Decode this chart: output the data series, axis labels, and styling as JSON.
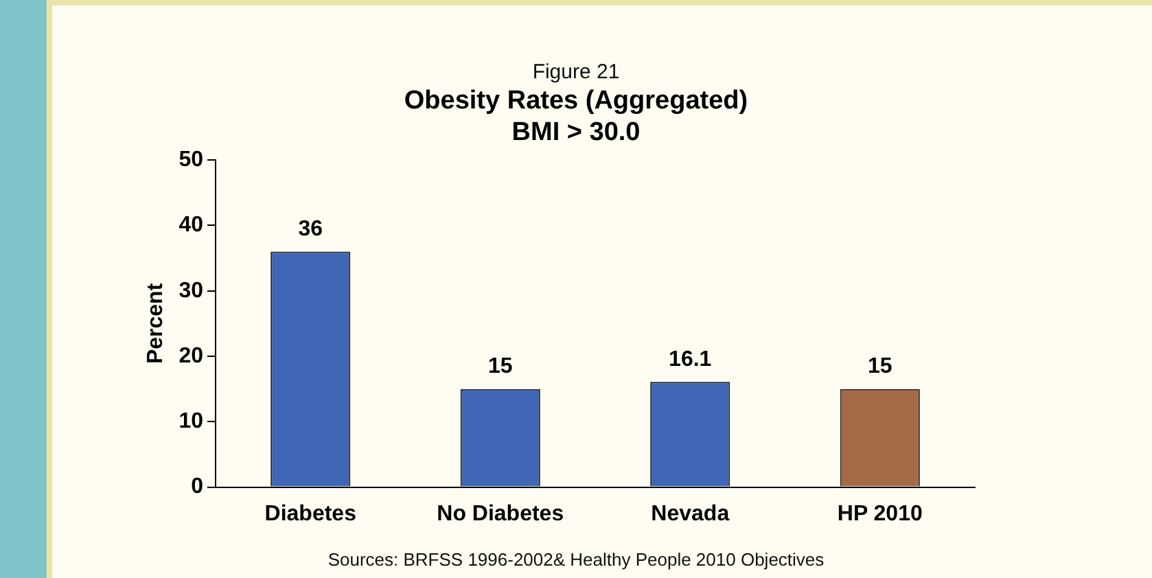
{
  "chart_data": {
    "type": "bar",
    "subtitle": "Figure 21",
    "title": "Obesity Rates (Aggregated)\nBMI > 30.0",
    "ylabel": "Percent",
    "categories": [
      "Diabetes",
      "No Diabetes",
      "Nevada",
      "HP 2010"
    ],
    "values": [
      36,
      15,
      16.1,
      15
    ],
    "colors": [
      "#3f67b5",
      "#3f67b5",
      "#3f67b5",
      "#a56a48"
    ],
    "ylim": [
      0,
      50
    ],
    "yticks": [
      0,
      10,
      20,
      30,
      40,
      50
    ],
    "grid": false,
    "legend": false,
    "data_labels": true,
    "annotations": [
      "Sources: BRFSS 1996-2002& Healthy People 2010 Objectives"
    ]
  }
}
